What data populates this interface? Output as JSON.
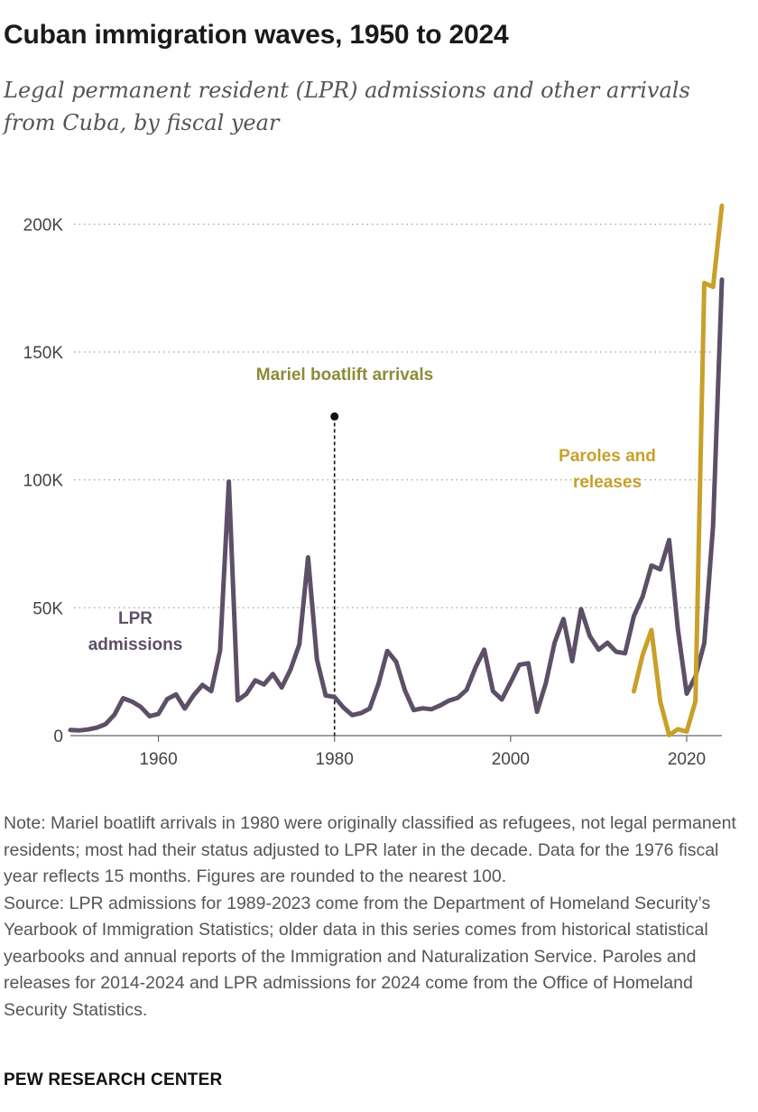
{
  "title": "Cuban immigration waves, 1950 to 2024",
  "subtitle": "Legal permanent resident (LPR) admissions and other arrivals from Cuba, by fiscal year",
  "chart_data": {
    "type": "line",
    "xlim": [
      1950,
      2024
    ],
    "ylim": [
      0,
      210000
    ],
    "x_ticks": [
      1960,
      1980,
      2000,
      2020
    ],
    "y_ticks": [
      0,
      50000,
      100000,
      150000,
      200000
    ],
    "y_tick_labels": [
      "0",
      "50K",
      "100K",
      "150K",
      "200K"
    ],
    "grid": "dotted horizontal",
    "series": [
      {
        "name": "LPR admissions",
        "label_lines": [
          "LPR",
          "admissions"
        ],
        "color": "#5d5066",
        "x": [
          1950,
          1951,
          1952,
          1953,
          1954,
          1955,
          1956,
          1957,
          1958,
          1959,
          1960,
          1961,
          1962,
          1963,
          1964,
          1965,
          1966,
          1967,
          1968,
          1969,
          1970,
          1971,
          1972,
          1973,
          1974,
          1975,
          1976,
          1977,
          1978,
          1979,
          1980,
          1981,
          1982,
          1983,
          1984,
          1985,
          1986,
          1987,
          1988,
          1989,
          1990,
          1991,
          1992,
          1993,
          1994,
          1995,
          1996,
          1997,
          1998,
          1999,
          2000,
          2001,
          2002,
          2003,
          2004,
          2005,
          2006,
          2007,
          2008,
          2009,
          2010,
          2011,
          2012,
          2013,
          2014,
          2015,
          2016,
          2017,
          2018,
          2019,
          2020,
          2021,
          2022,
          2023,
          2024
        ],
        "values": [
          2200,
          2000,
          2400,
          3100,
          4500,
          8200,
          14600,
          13300,
          11200,
          7600,
          8500,
          14300,
          16100,
          10600,
          15800,
          19800,
          17400,
          33300,
          99300,
          13800,
          16300,
          21600,
          20000,
          24100,
          18800,
          25800,
          35600,
          69700,
          29800,
          15700,
          15100,
          11000,
          8000,
          8800,
          10600,
          20300,
          33100,
          28900,
          17600,
          10000,
          10700,
          10300,
          11800,
          13700,
          14800,
          17900,
          26500,
          33600,
          17400,
          14100,
          20800,
          27700,
          28300,
          9300,
          20500,
          36300,
          45600,
          29100,
          49500,
          38900,
          33600,
          36300,
          32800,
          32200,
          46700,
          54400,
          66500,
          65000,
          76500,
          41600,
          16400,
          23100,
          36200,
          82000,
          178300
        ]
      },
      {
        "name": "Paroles and releases",
        "label_lines": [
          "Paroles and",
          "releases"
        ],
        "color": "#c8a02a",
        "x": [
          2014,
          2015,
          2016,
          2017,
          2018,
          2019,
          2020,
          2021,
          2022,
          2023,
          2024
        ],
        "values": [
          17300,
          31600,
          41300,
          13300,
          200,
          2500,
          1600,
          13500,
          177000,
          175500,
          207200
        ]
      },
      {
        "name": "Mariel boatlift arrivals",
        "label_lines": [
          "Mariel boatlift arrivals"
        ],
        "color": "#8c8c3a",
        "x": [
          1980
        ],
        "values": [
          124800
        ]
      }
    ]
  },
  "notes": {
    "note": "Note: Mariel boatlift arrivals in 1980 were originally classified as refugees, not legal permanent residents; most had their status adjusted to LPR later in the decade. Data for the 1976 fiscal year reflects 15 months. Figures are rounded to the nearest 100.",
    "source": "Source: LPR admissions for 1989-2023 come from the Department of Homeland Security’s Yearbook of Immigration Statistics; older data in this series comes from historical statistical yearbooks and annual reports of the Immigration and Naturalization Service. Paroles and releases for 2014-2024 and LPR admissions for 2024 come from the Office of Homeland Security Statistics."
  },
  "footer": "PEW RESEARCH CENTER"
}
